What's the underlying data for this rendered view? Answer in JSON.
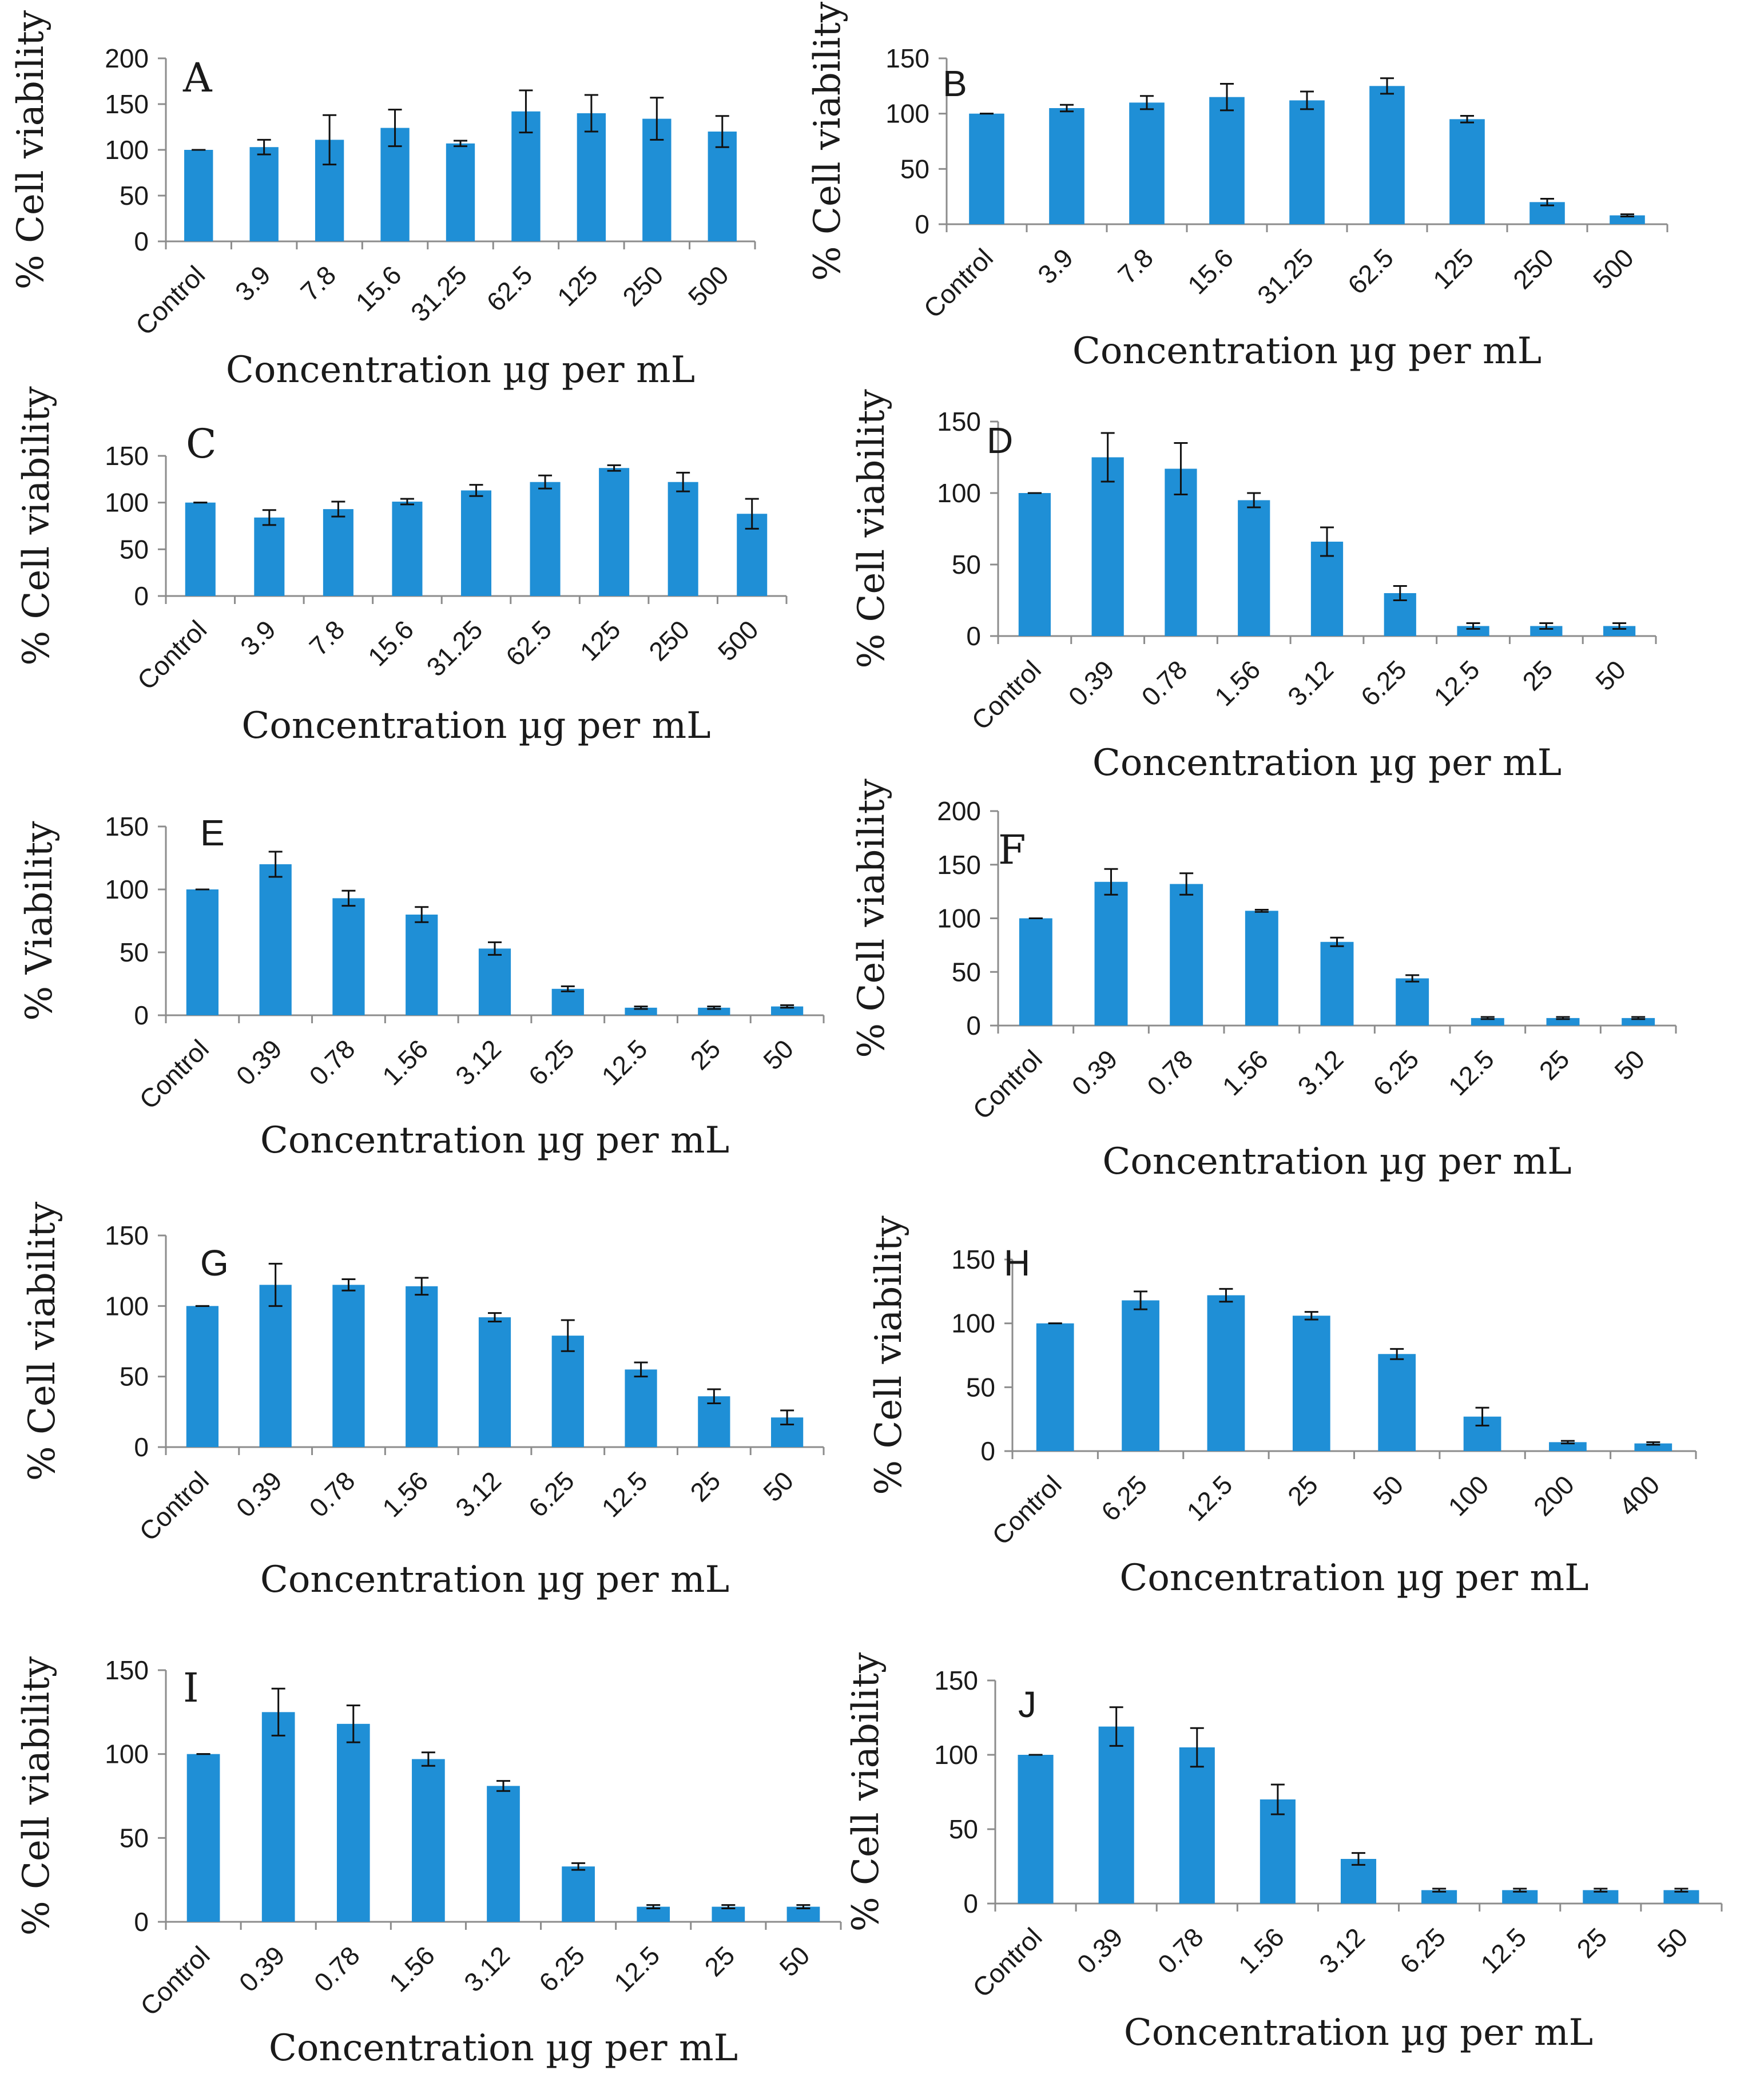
{
  "figure": {
    "description_label": "Cell viability panels A–J"
  },
  "colors": {
    "bar": "#1f8fd6",
    "axis": "#8c8c8c",
    "error": "#111111",
    "text": "#1a1a1a"
  },
  "chart_data": [
    {
      "id": "A",
      "type": "bar",
      "letter": "A",
      "letter_font": "serif",
      "title": "",
      "ylabel": "% Cell viability",
      "xlabel": "Concentration µg per mL",
      "categories": [
        "Control",
        "3.9",
        "7.8",
        "15.6",
        "31.25",
        "62.5",
        "125",
        "250",
        "500"
      ],
      "values": [
        100,
        103,
        111,
        124,
        107,
        142,
        140,
        134,
        120
      ],
      "errors": [
        0,
        8,
        27,
        20,
        3,
        23,
        20,
        23,
        17
      ],
      "yticks": [
        0,
        50,
        100,
        150,
        200
      ],
      "ylim": [
        0,
        200
      ]
    },
    {
      "id": "B",
      "type": "bar",
      "letter": "B",
      "letter_font": "sans",
      "title": "",
      "ylabel": "% Cell viability",
      "xlabel": "Concentration µg per mL",
      "categories": [
        "Control",
        "3.9",
        "7.8",
        "15.6",
        "31.25",
        "62.5",
        "125",
        "250",
        "500"
      ],
      "values": [
        100,
        105,
        110,
        115,
        112,
        125,
        95,
        20,
        8
      ],
      "errors": [
        0,
        3,
        6,
        12,
        8,
        7,
        3,
        3,
        1
      ],
      "yticks": [
        0,
        50,
        100,
        150
      ],
      "ylim": [
        0,
        150
      ]
    },
    {
      "id": "C",
      "type": "bar",
      "letter": "C",
      "letter_font": "serif",
      "title": "",
      "ylabel": "% Cell viability",
      "xlabel": "Concentration µg per mL",
      "categories": [
        "Control",
        "3.9",
        "7.8",
        "15.6",
        "31.25",
        "62.5",
        "125",
        "250",
        "500"
      ],
      "values": [
        100,
        84,
        93,
        101,
        113,
        122,
        137,
        122,
        88
      ],
      "errors": [
        0,
        8,
        8,
        3,
        6,
        7,
        3,
        10,
        16
      ],
      "yticks": [
        0,
        50,
        100,
        150
      ],
      "ylim": [
        0,
        150
      ]
    },
    {
      "id": "D",
      "type": "bar",
      "letter": "D",
      "letter_font": "sans",
      "title": "",
      "ylabel": "% Cell viability",
      "xlabel": "Concentration µg per mL",
      "categories": [
        "Control",
        "0.39",
        "0.78",
        "1.56",
        "3.12",
        "6.25",
        "12.5",
        "25",
        "50"
      ],
      "values": [
        100,
        125,
        117,
        95,
        66,
        30,
        7,
        7,
        7
      ],
      "errors": [
        0,
        17,
        18,
        5,
        10,
        5,
        2,
        2,
        2
      ],
      "yticks": [
        0,
        50,
        100,
        150
      ],
      "ylim": [
        0,
        150
      ]
    },
    {
      "id": "E",
      "type": "bar",
      "letter": "E",
      "letter_font": "sans",
      "title": "",
      "ylabel": "% Viability",
      "xlabel": "Concentration µg per mL",
      "categories": [
        "Control",
        "0.39",
        "0.78",
        "1.56",
        "3.12",
        "6.25",
        "12.5",
        "25",
        "50"
      ],
      "values": [
        100,
        120,
        93,
        80,
        53,
        21,
        6,
        6,
        7
      ],
      "errors": [
        0,
        10,
        6,
        6,
        5,
        2,
        1,
        1,
        1
      ],
      "yticks": [
        0,
        50,
        100,
        150
      ],
      "ylim": [
        0,
        150
      ]
    },
    {
      "id": "F",
      "type": "bar",
      "letter": "F",
      "letter_font": "serif",
      "title": "",
      "ylabel": "% Cell viability",
      "xlabel": "Concentration µg per mL",
      "categories": [
        "Control",
        "0.39",
        "0.78",
        "1.56",
        "3.12",
        "6.25",
        "12.5",
        "25",
        "50"
      ],
      "values": [
        100,
        134,
        132,
        107,
        78,
        44,
        7,
        7,
        7
      ],
      "errors": [
        0,
        12,
        10,
        1,
        4,
        3,
        1,
        1,
        1
      ],
      "yticks": [
        0,
        50,
        100,
        150,
        200
      ],
      "ylim": [
        0,
        200
      ]
    },
    {
      "id": "G",
      "type": "bar",
      "letter": "G",
      "letter_font": "sans",
      "title": "",
      "ylabel": "% Cell viability",
      "xlabel": "Concentration µg per mL",
      "categories": [
        "Control",
        "0.39",
        "0.78",
        "1.56",
        "3.12",
        "6.25",
        "12.5",
        "25",
        "50"
      ],
      "values": [
        100,
        115,
        115,
        114,
        92,
        79,
        55,
        36,
        21
      ],
      "errors": [
        0,
        15,
        4,
        6,
        3,
        11,
        5,
        5,
        5
      ],
      "yticks": [
        0,
        50,
        100,
        150
      ],
      "ylim": [
        0,
        150
      ]
    },
    {
      "id": "H",
      "type": "bar",
      "letter": "H",
      "letter_font": "sans",
      "title": "",
      "ylabel": "% Cell viability",
      "xlabel": "Concentration µg per mL",
      "categories": [
        "Control",
        "6.25",
        "12.5",
        "25",
        "50",
        "100",
        "200",
        "400"
      ],
      "values": [
        100,
        118,
        122,
        106,
        76,
        27,
        7,
        6
      ],
      "errors": [
        0,
        7,
        5,
        3,
        4,
        7,
        1,
        1
      ],
      "yticks": [
        0,
        50,
        100,
        150
      ],
      "ylim": [
        0,
        150
      ]
    },
    {
      "id": "I",
      "type": "bar",
      "letter": "I",
      "letter_font": "serif",
      "title": "",
      "ylabel": "% Cell viability",
      "xlabel": "Concentration µg per mL",
      "categories": [
        "Control",
        "0.39",
        "0.78",
        "1.56",
        "3.12",
        "6.25",
        "12.5",
        "25",
        "50"
      ],
      "values": [
        100,
        125,
        118,
        97,
        81,
        33,
        9,
        9,
        9
      ],
      "errors": [
        0,
        14,
        11,
        4,
        3,
        2,
        1,
        1,
        1
      ],
      "yticks": [
        0,
        50,
        100,
        150
      ],
      "ylim": [
        0,
        150
      ]
    },
    {
      "id": "J",
      "type": "bar",
      "letter": "J",
      "letter_font": "sans",
      "title": "",
      "ylabel": "% Cell viability",
      "xlabel": "Concentration µg per mL",
      "categories": [
        "Control",
        "0.39",
        "0.78",
        "1.56",
        "3.12",
        "6.25",
        "12.5",
        "25",
        "50"
      ],
      "values": [
        100,
        119,
        105,
        70,
        30,
        9,
        9,
        9,
        9
      ],
      "errors": [
        0,
        13,
        13,
        10,
        4,
        1,
        1,
        1,
        1
      ],
      "yticks": [
        0,
        50,
        100,
        150
      ],
      "ylim": [
        0,
        150
      ]
    }
  ]
}
